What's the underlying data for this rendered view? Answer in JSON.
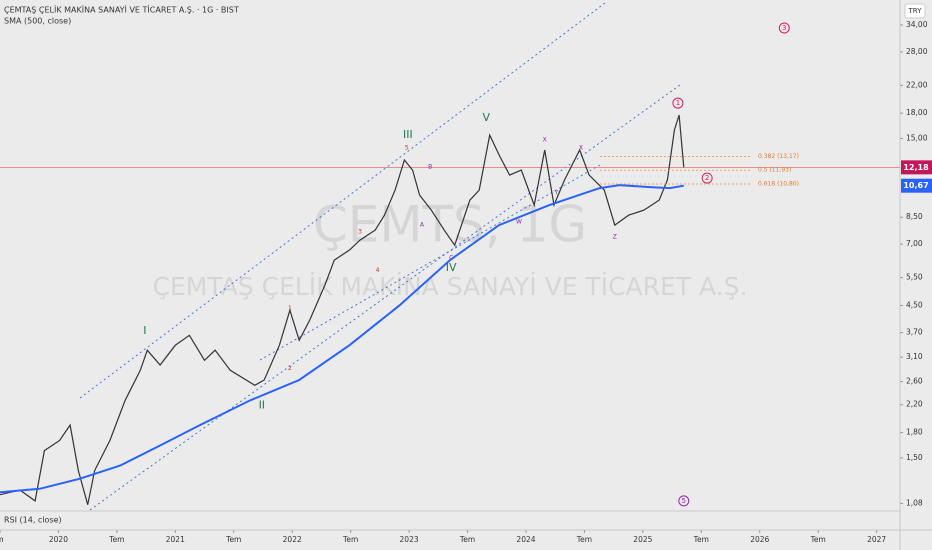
{
  "chart_data": {
    "type": "line",
    "title": "ÇEMTAŞ ÇELİK MAKİNA SANAYİ VE TİCARET A.Ş. · 1G · BIST",
    "indicator": "SMA (500, close)",
    "lower_pane": "RSI (14, close)",
    "currency": "TRY",
    "watermark_symbol": "ÇEMTS, 1G",
    "watermark_name": "ÇEMTAŞ ÇELİK MAKİNA SANAYİ VE TİCARET A.Ş.",
    "log_scale": true,
    "xlim": [
      2019.5,
      2027.2
    ],
    "ylim": [
      1.03,
      40.7
    ],
    "xticks": [
      {
        "value": 2019.5,
        "label": "m"
      },
      2020,
      {
        "value": 2020.5,
        "label": "Tem"
      },
      2021,
      {
        "value": 2021.5,
        "label": "Tem"
      },
      2022,
      {
        "value": 2022.5,
        "label": "Tem"
      },
      2023,
      {
        "value": 2023.5,
        "label": "Tem"
      },
      2024,
      {
        "value": 2024.5,
        "label": "Tem"
      },
      2025,
      {
        "value": 2025.5,
        "label": "Tem"
      },
      2026,
      {
        "value": 2026.5,
        "label": "Tem"
      },
      2027
    ],
    "yticks": [
      {
        "value": 1.08,
        "label": "1,08"
      },
      {
        "value": 1.5,
        "label": "1,50"
      },
      {
        "value": 1.8,
        "label": "1,80"
      },
      {
        "value": 2.2,
        "label": "2,20"
      },
      {
        "value": 2.6,
        "label": "2,60"
      },
      {
        "value": 3.1,
        "label": "3,10"
      },
      {
        "value": 3.7,
        "label": "3,70"
      },
      {
        "value": 4.5,
        "label": "4,50"
      },
      {
        "value": 5.5,
        "label": "5,50"
      },
      {
        "value": 7,
        "label": "7,00"
      },
      {
        "value": 8.5,
        "label": "8,50"
      },
      {
        "value": 15,
        "label": "15,00"
      },
      {
        "value": 18,
        "label": "18,00"
      },
      {
        "value": 22,
        "label": "22,00"
      },
      {
        "value": 28,
        "label": "28,00"
      },
      {
        "value": 34,
        "label": "34,00"
      }
    ],
    "series": [
      {
        "name": "ÇEMTS",
        "color": "#333333",
        "x": [
          2019.5,
          2019.67,
          2019.8,
          2019.88,
          2020.01,
          2020.1,
          2020.17,
          2020.25,
          2020.31,
          2020.44,
          2020.57,
          2020.7,
          2020.76,
          2020.87,
          2021.0,
          2021.12,
          2021.25,
          2021.34,
          2021.47,
          2021.68,
          2021.76,
          2021.89,
          2021.98,
          2022.06,
          2022.15,
          2022.28,
          2022.36,
          2022.49,
          2022.58,
          2022.71,
          2022.79,
          2022.88,
          2022.96,
          2023.03,
          2023.09,
          2023.19,
          2023.3,
          2023.39,
          2023.52,
          2023.6,
          2023.69,
          2023.77,
          2023.86,
          2023.96,
          2024.07,
          2024.16,
          2024.24,
          2024.33,
          2024.46,
          2024.54,
          2024.67,
          2024.76,
          2024.88,
          2025.01,
          2025.14,
          2025.21,
          2025.27,
          2025.31,
          2025.35
        ],
        "values": [
          1.15,
          1.19,
          1.1,
          1.58,
          1.7,
          1.9,
          1.37,
          1.07,
          1.37,
          1.7,
          2.27,
          2.82,
          3.26,
          2.93,
          3.38,
          3.63,
          3.03,
          3.26,
          2.82,
          2.53,
          2.63,
          3.38,
          4.35,
          3.5,
          4.05,
          5.21,
          6.24,
          6.71,
          7.21,
          7.75,
          8.63,
          10.34,
          12.84,
          11.94,
          9.97,
          8.95,
          7.75,
          6.95,
          9.62,
          10.34,
          15.37,
          13.31,
          11.52,
          11.94,
          9.28,
          13.8,
          9.28,
          11.12,
          13.8,
          11.52,
          10.34,
          8.03,
          8.63,
          8.95,
          9.62,
          11.12,
          15.94,
          17.76,
          12.18
        ]
      },
      {
        "name": "SMA (500)",
        "color": "#2962ff",
        "x": [
          2019.5,
          2019.84,
          2020.18,
          2020.53,
          2020.87,
          2021.21,
          2021.64,
          2022.06,
          2022.49,
          2022.92,
          2023.35,
          2023.77,
          2024.2,
          2024.63,
          2024.8,
          2025.06,
          2025.23,
          2025.35
        ],
        "values": [
          1.17,
          1.2,
          1.29,
          1.42,
          1.64,
          1.9,
          2.27,
          2.63,
          3.38,
          4.51,
          6.24,
          8.03,
          9.28,
          10.49,
          10.72,
          10.56,
          10.49,
          10.67
        ]
      }
    ],
    "last_price": {
      "value": 12.18,
      "label": "12,18"
    },
    "sma_last": {
      "value": 10.67,
      "label": "10,67"
    },
    "fib_levels": [
      {
        "value": 13.17,
        "label": "0.382 (13,17)"
      },
      {
        "value": 11.93,
        "label": "0.5 (11,93)"
      },
      {
        "value": 10.8,
        "label": "0.618 (10,80)"
      }
    ],
    "annotations": [
      {
        "text": "I",
        "x": 2020.74,
        "y": 3.74,
        "style": "major"
      },
      {
        "text": "II",
        "x": 2021.74,
        "y": 2.19,
        "style": "major"
      },
      {
        "text": "III",
        "x": 2022.99,
        "y": 15.37,
        "style": "major"
      },
      {
        "text": "IV",
        "x": 2023.36,
        "y": 5.89,
        "style": "major"
      },
      {
        "text": "V",
        "x": 2023.66,
        "y": 17.38,
        "style": "major"
      },
      {
        "text": "1",
        "x": 2021.98,
        "y": 4.41,
        "style": "minor"
      },
      {
        "text": "2",
        "x": 2021.98,
        "y": 2.86,
        "style": "minor"
      },
      {
        "text": "3",
        "x": 2022.58,
        "y": 7.63,
        "style": "minor"
      },
      {
        "text": "4",
        "x": 2022.73,
        "y": 5.8,
        "style": "minor"
      },
      {
        "text": "5",
        "x": 2022.98,
        "y": 14.0,
        "style": "minor"
      },
      {
        "text": "A",
        "x": 2023.11,
        "y": 8.03,
        "style": "corr"
      },
      {
        "text": "B",
        "x": 2023.18,
        "y": 12.2,
        "style": "corr"
      },
      {
        "text": "C",
        "x": 2023.36,
        "y": 6.33,
        "style": "corr"
      },
      {
        "text": "W",
        "x": 2023.94,
        "y": 8.21,
        "style": "corr"
      },
      {
        "text": "X",
        "x": 2024.16,
        "y": 14.82,
        "style": "corr"
      },
      {
        "text": "Y",
        "x": 2024.26,
        "y": 10.12,
        "style": "corr"
      },
      {
        "text": "X",
        "x": 2024.47,
        "y": 14.0,
        "style": "corr"
      },
      {
        "text": "Z",
        "x": 2024.76,
        "y": 7.36,
        "style": "corr"
      },
      {
        "text": "1",
        "x": 2025.3,
        "y": 19.36,
        "style": "circle"
      },
      {
        "text": "2",
        "x": 2025.55,
        "y": 11.27,
        "style": "circle"
      },
      {
        "text": "3",
        "x": 2026.21,
        "y": 33.27,
        "style": "circle"
      },
      {
        "text": "5",
        "x": 2025.35,
        "y": 1.1,
        "style": "circle-purple"
      }
    ]
  }
}
